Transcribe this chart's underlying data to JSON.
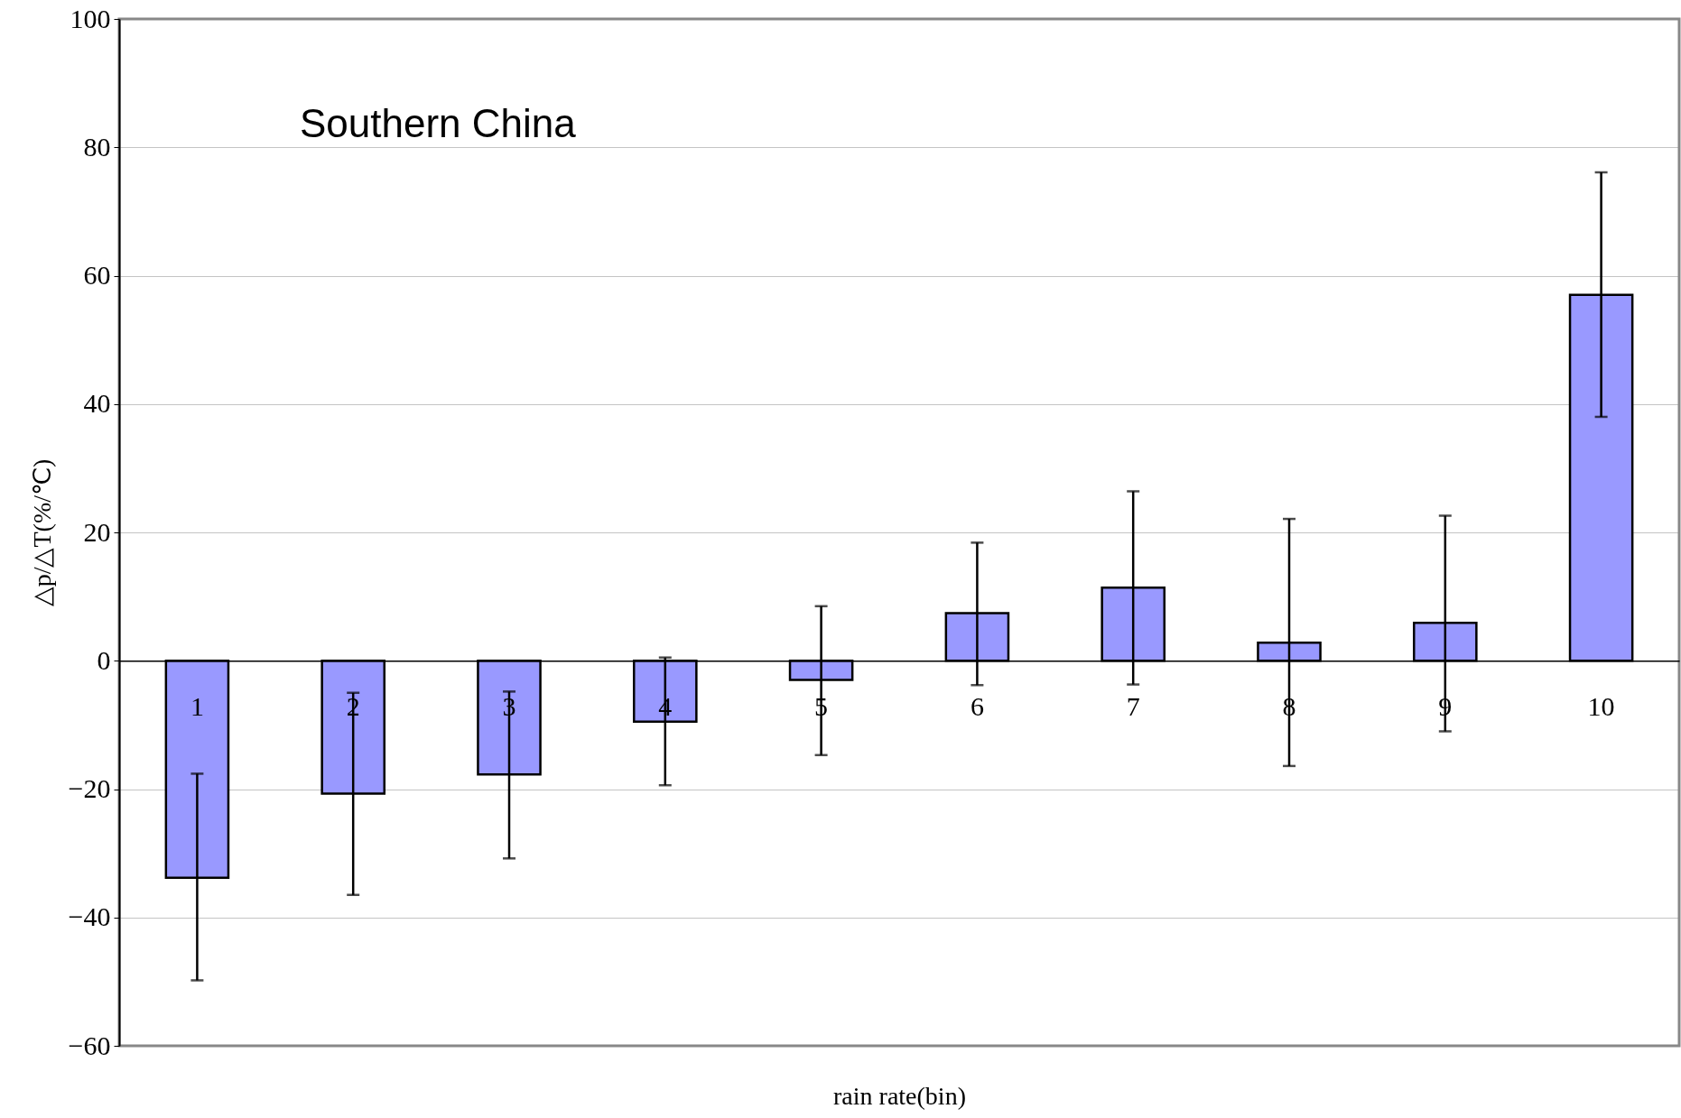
{
  "chart_data": {
    "type": "bar",
    "xlabel": "rain rate(bin)",
    "ylabel": "△p/△T(%/℃)",
    "annotations": [
      "Southern China"
    ],
    "categories": [
      "1",
      "2",
      "3",
      "4",
      "5",
      "6",
      "7",
      "8",
      "9",
      "10"
    ],
    "values": [
      -33.8,
      -20.7,
      -17.7,
      -9.5,
      -3.0,
      7.4,
      11.4,
      2.8,
      5.9,
      57.0
    ],
    "errors": [
      [
        -49.8,
        -17.6
      ],
      [
        -36.5,
        -5.0
      ],
      [
        -30.8,
        -4.8
      ],
      [
        -19.4,
        0.5
      ],
      [
        -14.7,
        8.5
      ],
      [
        -3.8,
        18.4
      ],
      [
        -3.7,
        26.4
      ],
      [
        -16.4,
        22.1
      ],
      [
        -11.0,
        22.6
      ],
      [
        38.0,
        76.1
      ]
    ],
    "color": "#9999ff",
    "ylim": [
      -60,
      100
    ],
    "yticks": [
      -60,
      -40,
      -20,
      0,
      20,
      40,
      60,
      80,
      100
    ],
    "grid": "y"
  }
}
